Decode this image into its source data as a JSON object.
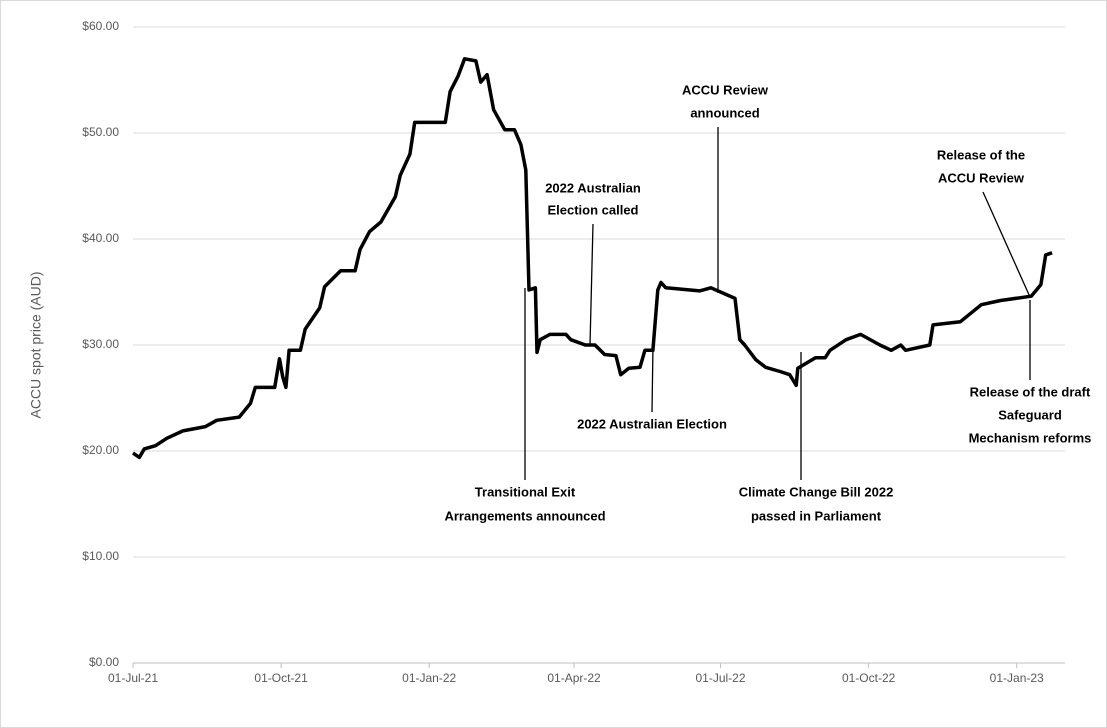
{
  "chart_data": {
    "type": "line",
    "y_label": "ACCU spot price (AUD)",
    "x": [
      "01-Jul-21",
      "05-Jul-21",
      "08-Jul-21",
      "15-Jul-21",
      "22-Jul-21",
      "01-Aug-21",
      "15-Aug-21",
      "22-Aug-21",
      "05-Sep-21",
      "12-Sep-21",
      "15-Sep-21",
      "27-Sep-21",
      "30-Sep-21",
      "02-Oct-21",
      "04-Oct-21",
      "06-Oct-21",
      "13-Oct-21",
      "16-Oct-21",
      "25-Oct-21",
      "28-Oct-21",
      "07-Nov-21",
      "16-Nov-21",
      "19-Nov-21",
      "25-Nov-21",
      "02-Dec-21",
      "11-Dec-21",
      "14-Dec-21",
      "20-Dec-21",
      "23-Dec-21",
      "11-Jan-22",
      "14-Jan-22",
      "19-Jan-22",
      "23-Jan-22",
      "30-Jan-22",
      "02-Feb-22",
      "06-Feb-22",
      "10-Feb-22",
      "17-Feb-22",
      "23-Feb-22",
      "27-Feb-22",
      "02-Mar-22",
      "04-Mar-22",
      "08-Mar-22",
      "09-Mar-22",
      "11-Mar-22",
      "17-Mar-22",
      "27-Mar-22",
      "30-Mar-22",
      "08-Apr-22",
      "14-Apr-22",
      "20-Apr-22",
      "27-Apr-22",
      "30-Apr-22",
      "05-May-22",
      "12-May-22",
      "15-May-22",
      "20-May-22",
      "23-May-22",
      "25-May-22",
      "28-May-22",
      "18-Jun-22",
      "25-Jun-22",
      "01-Jul-22",
      "10-Jul-22",
      "13-Jul-22",
      "16-Jul-22",
      "23-Jul-22",
      "29-Jul-22",
      "07-Aug-22",
      "13-Aug-22",
      "17-Aug-22",
      "18-Aug-22",
      "29-Aug-22",
      "04-Sep-22",
      "07-Sep-22",
      "17-Sep-22",
      "26-Sep-22",
      "08-Oct-22",
      "15-Oct-22",
      "21-Oct-22",
      "24-Oct-22",
      "08-Nov-22",
      "10-Nov-22",
      "27-Nov-22",
      "10-Dec-22",
      "22-Dec-22",
      "10-Jan-23",
      "16-Jan-23",
      "19-Jan-23",
      "23-Jan-23"
    ],
    "series": [
      {
        "color": "#000000",
        "values": [
          19.8,
          19.4,
          20.2,
          20.5,
          21.2,
          21.9,
          22.3,
          22.9,
          23.2,
          24.5,
          26.0,
          26.0,
          28.7,
          27.0,
          26.0,
          29.5,
          29.5,
          31.5,
          33.5,
          35.5,
          37.0,
          37.0,
          39.0,
          40.7,
          41.6,
          44.0,
          46.0,
          48.0,
          51.0,
          51.0,
          53.9,
          55.4,
          57.0,
          56.8,
          54.8,
          55.5,
          52.2,
          50.3,
          50.3,
          48.9,
          46.5,
          35.2,
          35.4,
          29.3,
          30.5,
          31.0,
          31.0,
          30.5,
          30.0,
          30.0,
          29.1,
          29.0,
          27.2,
          27.8,
          27.9,
          29.5,
          29.5,
          35.2,
          35.9,
          35.4,
          35.1,
          35.4,
          35.0,
          34.4,
          30.5,
          30.0,
          28.6,
          27.9,
          27.5,
          27.2,
          26.2,
          27.8,
          28.8,
          28.8,
          29.5,
          30.5,
          31.0,
          30.0,
          29.5,
          30.0,
          29.5,
          30.0,
          31.9,
          32.2,
          33.8,
          34.2,
          34.6,
          35.7,
          38.5,
          38.7
        ]
      }
    ],
    "xlim": [
      "01-Jul-21",
      "31-Jan-23"
    ],
    "xticks": [
      "01-Jul-21",
      "01-Oct-21",
      "01-Jan-22",
      "01-Apr-22",
      "01-Jul-22",
      "01-Oct-22",
      "01-Jan-23"
    ],
    "ylim": [
      0,
      60
    ],
    "yticks": [
      {
        "value": 0,
        "label": "$0.00"
      },
      {
        "value": 10,
        "label": "$10.00"
      },
      {
        "value": 20,
        "label": "$20.00"
      },
      {
        "value": 30,
        "label": "$30.00"
      },
      {
        "value": 40,
        "label": "$40.00"
      },
      {
        "value": 50,
        "label": "$50.00"
      },
      {
        "value": 60,
        "label": "$60.00"
      }
    ],
    "grid": true,
    "annotations": [
      {
        "lines": [
          "ACCU Review",
          "announced"
        ]
      },
      {
        "lines": [
          "2022 Australian",
          "Election called"
        ]
      },
      {
        "lines": [
          "Release of the",
          "ACCU Review"
        ]
      },
      {
        "lines": [
          "Transitional Exit",
          "Arrangements announced"
        ]
      },
      {
        "lines": [
          "2022 Australian Election"
        ]
      },
      {
        "lines": [
          "Climate Change Bill 2022",
          "passed in Parliament"
        ]
      },
      {
        "lines": [
          "Release of the draft",
          "Safeguard",
          "Mechanism reforms"
        ]
      }
    ]
  }
}
